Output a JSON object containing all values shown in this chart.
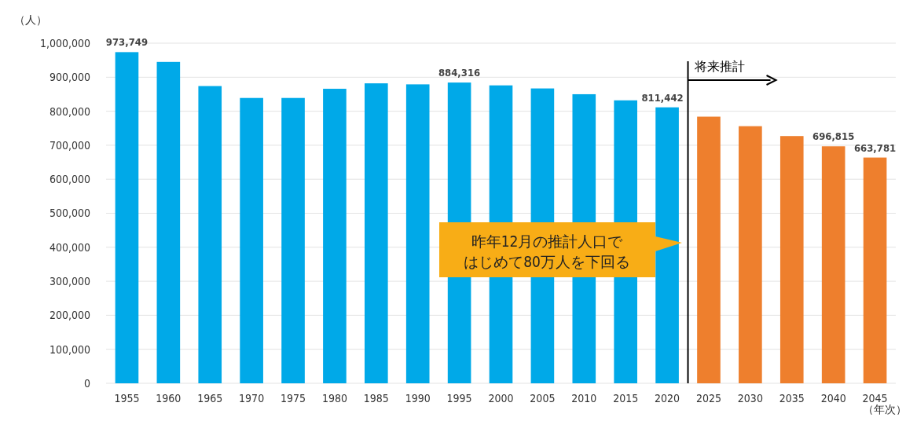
{
  "chart_data": {
    "type": "bar",
    "ylabel": "（人）",
    "xlabel": "（年次）",
    "categories": [
      "1955",
      "1960",
      "1965",
      "1970",
      "1975",
      "1980",
      "1985",
      "1990",
      "1995",
      "2000",
      "2005",
      "2010",
      "2015",
      "2020",
      "2025",
      "2030",
      "2035",
      "2040",
      "2045"
    ],
    "values": [
      973749,
      945000,
      874000,
      839000,
      839000,
      866000,
      882000,
      879000,
      884316,
      876000,
      867000,
      850000,
      832000,
      811442,
      784000,
      756000,
      727000,
      696815,
      663781
    ],
    "colors": [
      "#00a9e8",
      "#00a9e8",
      "#00a9e8",
      "#00a9e8",
      "#00a9e8",
      "#00a9e8",
      "#00a9e8",
      "#00a9e8",
      "#00a9e8",
      "#00a9e8",
      "#00a9e8",
      "#00a9e8",
      "#00a9e8",
      "#00a9e8",
      "#ee7f2d",
      "#ee7f2d",
      "#ee7f2d",
      "#ee7f2d",
      "#ee7f2d"
    ],
    "value_labels": [
      "973,749",
      null,
      null,
      null,
      null,
      null,
      null,
      null,
      "884,316",
      null,
      null,
      null,
      null,
      "811,442",
      null,
      null,
      null,
      "696,815",
      "663,781"
    ],
    "ylim": [
      0,
      1000000
    ],
    "yticks": [
      0,
      {
        "value": 100000,
        "label": "100,000"
      },
      {
        "value": 200000,
        "label": "200,000"
      },
      {
        "value": 300000,
        "label": "300,000"
      },
      {
        "value": 400000,
        "label": "400,000"
      },
      {
        "value": 500000,
        "label": "500,000"
      },
      {
        "value": 600000,
        "label": "600,000"
      },
      {
        "value": 700000,
        "label": "700,000"
      },
      {
        "value": 800000,
        "label": "800,000"
      },
      {
        "value": 900000,
        "label": "900,000"
      },
      {
        "value": 1000000,
        "label": "1,000,000"
      }
    ],
    "grid": "y",
    "ref_lines": [
      {
        "axis": "x",
        "value": "2025",
        "label": "将来推計",
        "color": "#000000"
      }
    ],
    "annotations": [
      "昨年12月の推計人口ではじめて80万人を下回る"
    ]
  }
}
